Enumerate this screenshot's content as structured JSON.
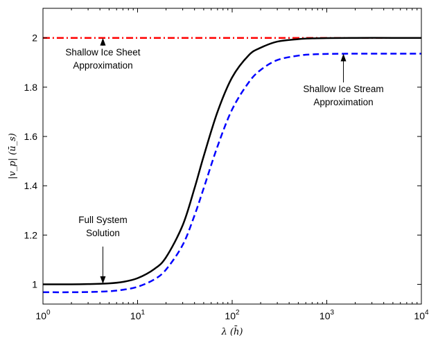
{
  "chart_data": {
    "type": "line",
    "xscale": "log",
    "xlim": [
      1,
      10000
    ],
    "ylim": [
      0.92,
      2.12
    ],
    "xlabel": "λ  (h̄)",
    "ylabel": "|v_p|  (ū_s)",
    "xticks": [
      {
        "value": 1,
        "base": "10",
        "exp": "0"
      },
      {
        "value": 10,
        "base": "10",
        "exp": "1"
      },
      {
        "value": 100,
        "base": "10",
        "exp": "2"
      },
      {
        "value": 1000,
        "base": "10",
        "exp": "3"
      },
      {
        "value": 10000,
        "base": "10",
        "exp": "4"
      }
    ],
    "yticks": [
      {
        "value": 1,
        "label": "1"
      },
      {
        "value": 1.2,
        "label": "1.2"
      },
      {
        "value": 1.4,
        "label": "1.4"
      },
      {
        "value": 1.6,
        "label": "1.6"
      },
      {
        "value": 1.8,
        "label": "1.8"
      },
      {
        "value": 2,
        "label": "2"
      }
    ],
    "grid": false,
    "series": [
      {
        "style": "dash-dot",
        "color": "#ff0000",
        "x": [
          1,
          10,
          100,
          1000,
          10000
        ],
        "y": [
          2,
          2,
          2,
          2,
          2
        ]
      },
      {
        "style": "solid",
        "color": "#000000",
        "x": [
          1,
          2,
          3,
          5,
          7,
          10,
          15,
          20,
          30,
          40,
          50,
          70,
          100,
          150,
          200,
          300,
          500,
          700,
          1000,
          2000,
          5000,
          10000
        ],
        "y": [
          1.0,
          1.0,
          1.001,
          1.004,
          1.01,
          1.025,
          1.062,
          1.11,
          1.24,
          1.39,
          1.52,
          1.7,
          1.84,
          1.93,
          1.96,
          1.985,
          1.995,
          1.998,
          1.999,
          2.0,
          2.0,
          2.0
        ]
      },
      {
        "style": "dashed",
        "color": "#0000ff",
        "x": [
          1,
          2,
          3,
          5,
          7,
          10,
          15,
          20,
          30,
          40,
          50,
          70,
          100,
          150,
          200,
          300,
          500,
          700,
          1000,
          2000,
          5000,
          10000
        ],
        "y": [
          0.968,
          0.968,
          0.969,
          0.972,
          0.978,
          0.99,
          1.02,
          1.06,
          1.16,
          1.28,
          1.39,
          1.56,
          1.71,
          1.82,
          1.87,
          1.91,
          1.928,
          1.933,
          1.935,
          1.936,
          1.936,
          1.936
        ]
      }
    ],
    "annotations": [
      {
        "lines": [
          "Shallow Ice Sheet",
          "Approximation"
        ],
        "target": [
          4.3,
          2.0
        ]
      },
      {
        "lines": [
          "Shallow Ice Stream",
          "Approximation"
        ],
        "target": [
          1500,
          1.936
        ]
      },
      {
        "lines": [
          "Full System",
          "Solution"
        ],
        "target": [
          4.3,
          1.002
        ]
      }
    ]
  }
}
